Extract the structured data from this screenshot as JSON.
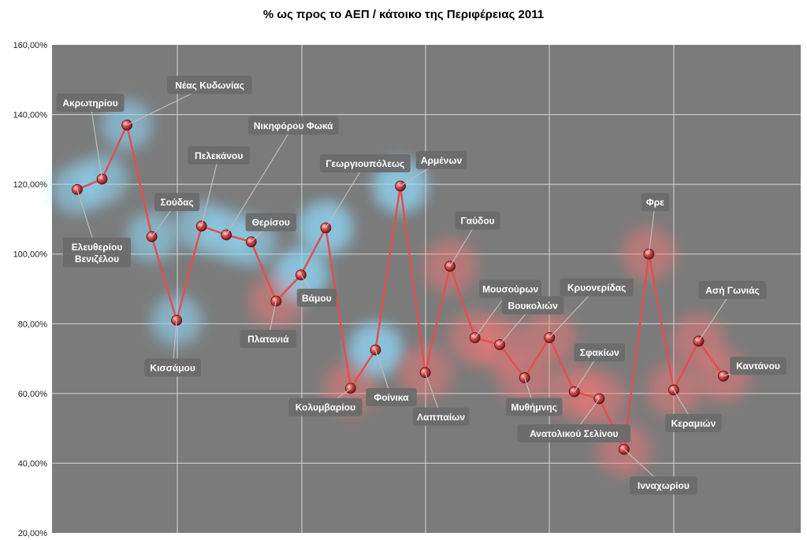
{
  "chart_data": {
    "type": "line",
    "title": "% ως προς το ΑΕΠ / κάτοικο της Περιφέρειας 2011",
    "xlabel": "",
    "ylabel": "",
    "ylim": [
      20,
      160
    ],
    "y_ticks": [
      "20,00%",
      "40,00%",
      "60,00%",
      "80,00%",
      "100,00%",
      "120,00%",
      "140,00%",
      "160,00%"
    ],
    "grid": true,
    "legend": "none",
    "colors": {
      "plot_bg": "#7b7b7b",
      "line": "#e05050",
      "marker": "#c43c3c",
      "label_bg": "#6a6a6a",
      "glow_blue": "#8fd6f5",
      "glow_red": "#ff7777"
    },
    "points": [
      {
        "name": "Ελευθερίου Βενιζέλου",
        "lines": [
          "Ελευθερίου",
          "Βενιζέλου"
        ],
        "value": 118.5
      },
      {
        "name": "Ακρωτηρίου",
        "lines": [
          "Ακρωτηρίου"
        ],
        "value": 121.5
      },
      {
        "name": "Νέας Κυδωνίας",
        "lines": [
          "Νέας Κυδωνίας"
        ],
        "value": 137
      },
      {
        "name": "Σούδας",
        "lines": [
          "Σούδας"
        ],
        "value": 105
      },
      {
        "name": "Κισσάμου",
        "lines": [
          "Κισσάμου"
        ],
        "value": 81
      },
      {
        "name": "Πελεκάνου",
        "lines": [
          "Πελεκάνου"
        ],
        "value": 108
      },
      {
        "name": "Νικηφόρου Φωκά",
        "lines": [
          "Νικηφόρου Φωκά"
        ],
        "value": 105.5
      },
      {
        "name": "Θερίσου",
        "lines": [
          "Θερίσου"
        ],
        "value": 103.5
      },
      {
        "name": "Πλατανιά",
        "lines": [
          "Πλατανιά"
        ],
        "value": 86.5
      },
      {
        "name": "Βάμου",
        "lines": [
          "Βάμου"
        ],
        "value": 94
      },
      {
        "name": "Γεωργιουπόλεως",
        "lines": [
          "Γεωργιουπόλεως"
        ],
        "value": 107.5
      },
      {
        "name": "Κολυμβαρίου",
        "lines": [
          "Κολυμβαρίου"
        ],
        "value": 61.5
      },
      {
        "name": "Φοίνικα",
        "lines": [
          "Φοίνικα"
        ],
        "value": 72.5
      },
      {
        "name": "Αρμένων",
        "lines": [
          "Αρμένων"
        ],
        "value": 119.5
      },
      {
        "name": "Λαππαίων",
        "lines": [
          "Λαππαίων"
        ],
        "value": 66
      },
      {
        "name": "Γαύδου",
        "lines": [
          "Γαύδου"
        ],
        "value": 96.5
      },
      {
        "name": "Μουσούρων",
        "lines": [
          "Μουσούρων"
        ],
        "value": 76
      },
      {
        "name": "Βουκολιών",
        "lines": [
          "Βουκολιών"
        ],
        "value": 74
      },
      {
        "name": "Μυθήμνης",
        "lines": [
          "Μυθήμνης"
        ],
        "value": 64.5
      },
      {
        "name": "Κρυονερίδας",
        "lines": [
          "Κρυονερίδας"
        ],
        "value": 76
      },
      {
        "name": "Σφακίων",
        "lines": [
          "Σφακίων"
        ],
        "value": 60.5
      },
      {
        "name": "Ανατολικού Σελίνου",
        "lines": [
          "Ανατολικού Σελίνου"
        ],
        "value": 58.5
      },
      {
        "name": "Ινναχωρίου",
        "lines": [
          "Ινναχωρίου"
        ],
        "value": 44
      },
      {
        "name": "Φρε",
        "lines": [
          "Φρε"
        ],
        "value": 100
      },
      {
        "name": "Κεραμιών",
        "lines": [
          "Κεραμιών"
        ],
        "value": 61
      },
      {
        "name": "Ασή Γωνιάς",
        "lines": [
          "Ασή Γωνιάς"
        ],
        "value": 75
      },
      {
        "name": "Καντάνου",
        "lines": [
          "Καντάνου"
        ],
        "value": 65
      }
    ]
  }
}
